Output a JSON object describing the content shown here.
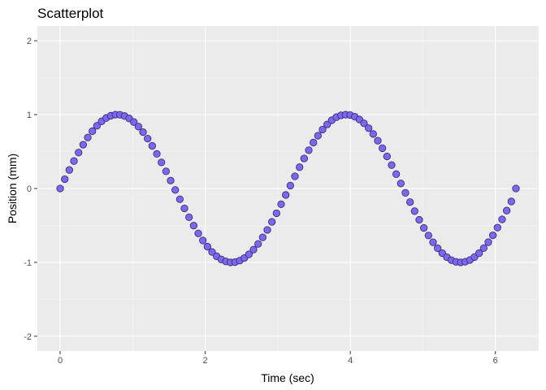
{
  "chart_data": {
    "type": "scatter",
    "title": "Scatterplot",
    "xlabel": "Time (sec)",
    "ylabel": "Position (mm)",
    "xlim": [
      -0.314,
      6.597
    ],
    "ylim": [
      -2.2,
      2.2
    ],
    "x_ticks": [
      0,
      2,
      4,
      6
    ],
    "x_tick_labels": [
      "0",
      "2",
      "4",
      "6"
    ],
    "y_ticks": [
      -2,
      -1,
      0,
      1,
      2
    ],
    "y_tick_labels": [
      "-2",
      "-1",
      "0",
      "1",
      "2"
    ],
    "grid": true,
    "legend": "none",
    "colors": {
      "panel_background": "#ebebeb",
      "grid_major": "#ffffff",
      "grid_minor": "#f5f5f5",
      "point_fill": "#7b68ee",
      "point_stroke": "#3a2f7a"
    },
    "x_range": [
      0,
      6.283
    ],
    "n_points": 100,
    "function": "y = sin(2x)",
    "x": [
      0.0,
      0.0635,
      0.1269,
      0.1904,
      0.2539,
      0.3173,
      0.3808,
      0.4443,
      0.5077,
      0.5712,
      0.6347,
      0.6981,
      0.7616,
      0.8251,
      0.8885,
      0.952,
      1.0155,
      1.0789,
      1.1424,
      1.2059,
      1.2693,
      1.3328,
      1.3963,
      1.4597,
      1.5232,
      1.5867,
      1.6501,
      1.7136,
      1.7771,
      1.8405,
      1.904,
      1.9675,
      2.0309,
      2.0944,
      2.1579,
      2.2213,
      2.2848,
      2.3483,
      2.4117,
      2.4752,
      2.5387,
      2.6021,
      2.6656,
      2.7291,
      2.7925,
      2.856,
      2.9195,
      2.9829,
      3.0464,
      3.1099,
      3.1733,
      3.2368,
      3.3003,
      3.3637,
      3.4272,
      3.4907,
      3.5541,
      3.6176,
      3.6811,
      3.7445,
      3.808,
      3.8715,
      3.9349,
      3.9984,
      4.0619,
      4.1253,
      4.1888,
      4.2523,
      4.3157,
      4.3792,
      4.4427,
      4.5061,
      4.5696,
      4.6331,
      4.6965,
      4.76,
      4.8235,
      4.8869,
      4.9504,
      5.0139,
      5.0773,
      5.1408,
      5.2043,
      5.2677,
      5.3312,
      5.3947,
      5.4581,
      5.5216,
      5.5851,
      5.6485,
      5.712,
      5.7755,
      5.8389,
      5.9024,
      5.9659,
      6.0293,
      6.0928,
      6.1563,
      6.2197,
      6.2832
    ],
    "y": [
      0.0,
      0.1266,
      0.2511,
      0.3717,
      0.4862,
      0.5929,
      0.6901,
      0.7761,
      0.8497,
      0.9096,
      0.9549,
      0.985,
      0.9995,
      0.998,
      0.9808,
      0.948,
      0.9001,
      0.8382,
      0.7629,
      0.6754,
      0.5768,
      0.4689,
      0.3535,
      0.2323,
      0.1073,
      -0.0195,
      -0.1457,
      -0.2697,
      -0.3893,
      -0.5025,
      -0.6075,
      -0.7032,
      -0.7872,
      -0.8596,
      -0.9174,
      -0.9603,
      -0.9879,
      -0.9999,
      -0.9961,
      -0.9766,
      -0.9416,
      -0.8916,
      -0.8277,
      -0.7505,
      -0.6613,
      -0.5611,
      -0.4519,
      -0.3352,
      -0.213,
      -0.0875,
      0.0395,
      0.1651,
      0.2883,
      0.4066,
      0.5186,
      0.6221,
      0.7153,
      0.7978,
      0.8673,
      0.924,
      0.9659,
      0.9911,
      1.0,
      0.9938,
      0.9721,
      0.9351,
      0.8829,
      0.8171,
      0.7381,
      0.6471,
      0.5452,
      0.4347,
      0.3171,
      0.1943,
      0.0683,
      -0.0586,
      -0.1843,
      -0.3066,
      -0.4233,
      -0.5343,
      -0.6367,
      -0.7279,
      -0.8083,
      -0.8756,
      -0.9296,
      -0.9707,
      -0.9932,
      -0.9999,
      -0.9914,
      -0.9678,
      -0.9288,
      -0.8752,
      -0.8072,
      -0.7265,
      -0.6336,
      -0.5291,
      -0.4178,
      -0.2992,
      -0.1754,
      0.0
    ]
  }
}
